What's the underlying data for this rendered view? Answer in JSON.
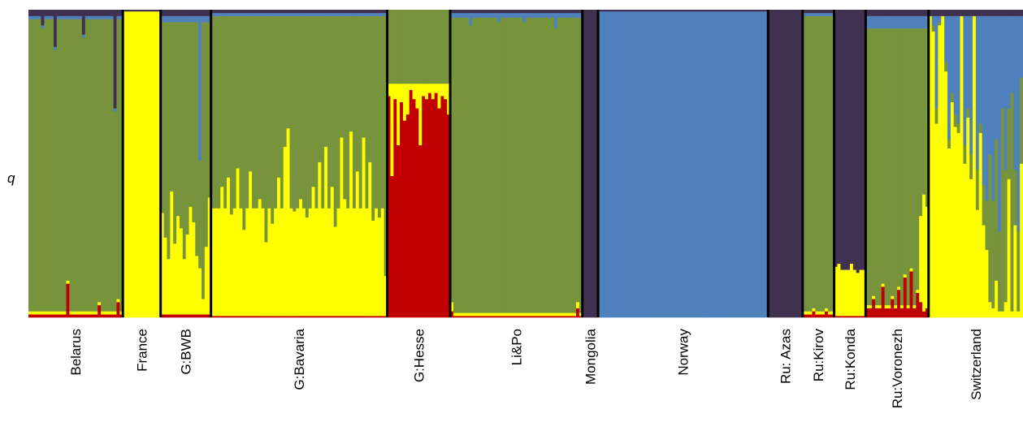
{
  "chart_data": {
    "type": "stacked-bar",
    "ylabel": "q",
    "ylim": [
      0,
      1
    ],
    "colors": {
      "red": "#c00000",
      "yellow": "#ffff00",
      "green": "#77933c",
      "blue": "#4f81bd",
      "purple": "#403151",
      "divider": "#000000"
    },
    "cluster_order": [
      "red",
      "yellow",
      "green",
      "blue",
      "purple"
    ],
    "populations": [
      {
        "name": "Belarus",
        "n": 30,
        "profile": {
          "red": 0.01,
          "yellow": 0.01,
          "green": 0.95,
          "blue": 0.01,
          "purple": 0.02
        },
        "individuals": [
          {
            "i": 4,
            "purple": 0.05
          },
          {
            "i": 8,
            "purple": 0.12
          },
          {
            "i": 12,
            "red": 0.11
          },
          {
            "i": 17,
            "purple": 0.08
          },
          {
            "i": 22,
            "red": 0.04
          },
          {
            "i": 27,
            "purple": 0.32
          },
          {
            "i": 28,
            "red": 0.05
          }
        ]
      },
      {
        "name": "France",
        "n": 12,
        "profile": {
          "red": 0.0,
          "yellow": 0.995,
          "green": 0.0,
          "blue": 0.0,
          "purple": 0.005
        }
      },
      {
        "name": "G:BWB",
        "n": 16,
        "profile": {
          "red": 0.01,
          "yellow": 0.3,
          "green": 0.65,
          "blue": 0.02,
          "purple": 0.02
        },
        "individuals": [
          {
            "i": 0,
            "yellow": 0.33
          },
          {
            "i": 1,
            "yellow": 0.25
          },
          {
            "i": 2,
            "yellow": 0.18
          },
          {
            "i": 3,
            "yellow": 0.4
          },
          {
            "i": 4,
            "yellow": 0.23
          },
          {
            "i": 5,
            "yellow": 0.32
          },
          {
            "i": 6,
            "yellow": 0.28
          },
          {
            "i": 7,
            "yellow": 0.18
          },
          {
            "i": 8,
            "yellow": 0.26
          },
          {
            "i": 9,
            "yellow": 0.35
          },
          {
            "i": 10,
            "yellow": 0.3
          },
          {
            "i": 11,
            "yellow": 0.19
          },
          {
            "i": 12,
            "yellow": 0.15,
            "blue": 0.47
          },
          {
            "i": 13,
            "yellow": 0.05
          },
          {
            "i": 14,
            "yellow": 0.22
          },
          {
            "i": 15,
            "yellow": 0.38
          }
        ]
      },
      {
        "name": "G:Bavaria",
        "n": 56,
        "profile": {
          "red": 0.005,
          "yellow": 0.35,
          "green": 0.625,
          "blue": 0.01,
          "purple": 0.01
        },
        "individuals": [
          {
            "i": 0,
            "yellow": 0.35
          },
          {
            "i": 3,
            "yellow": 0.42
          },
          {
            "i": 5,
            "yellow": 0.45
          },
          {
            "i": 6,
            "yellow": 0.33
          },
          {
            "i": 8,
            "yellow": 0.48
          },
          {
            "i": 10,
            "yellow": 0.28
          },
          {
            "i": 12,
            "yellow": 0.47
          },
          {
            "i": 15,
            "yellow": 0.38
          },
          {
            "i": 17,
            "yellow": 0.24
          },
          {
            "i": 19,
            "yellow": 0.3
          },
          {
            "i": 21,
            "yellow": 0.45
          },
          {
            "i": 23,
            "yellow": 0.55
          },
          {
            "i": 24,
            "yellow": 0.61
          },
          {
            "i": 26,
            "yellow": 0.34
          },
          {
            "i": 28,
            "yellow": 0.38
          },
          {
            "i": 30,
            "yellow": 0.32
          },
          {
            "i": 32,
            "yellow": 0.42
          },
          {
            "i": 34,
            "yellow": 0.5
          },
          {
            "i": 36,
            "yellow": 0.55
          },
          {
            "i": 38,
            "yellow": 0.42
          },
          {
            "i": 39,
            "yellow": 0.29
          },
          {
            "i": 41,
            "yellow": 0.58
          },
          {
            "i": 42,
            "yellow": 0.38
          },
          {
            "i": 44,
            "yellow": 0.6
          },
          {
            "i": 46,
            "yellow": 0.47
          },
          {
            "i": 48,
            "yellow": 0.58
          },
          {
            "i": 50,
            "yellow": 0.5
          },
          {
            "i": 51,
            "yellow": 0.31
          },
          {
            "i": 53,
            "yellow": 0.32
          },
          {
            "i": 55,
            "yellow": 0.13
          }
        ]
      },
      {
        "name": "G:Hesse",
        "n": 20,
        "profile": {
          "red": 0.7,
          "yellow": 0.06,
          "green": 0.24,
          "blue": 0.0,
          "purple": 0.0
        },
        "individuals": [
          {
            "i": 0,
            "red": 0.95,
            "yellow": 0.04
          },
          {
            "i": 1,
            "red": 0.48,
            "yellow": 0.3
          },
          {
            "i": 2,
            "red": 0.88,
            "yellow": 0.05
          },
          {
            "i": 3,
            "red": 0.62,
            "yellow": 0.2
          },
          {
            "i": 4,
            "red": 0.92,
            "yellow": 0.06
          },
          {
            "i": 5,
            "red": 0.4,
            "yellow": 0.12
          },
          {
            "i": 6,
            "red": 0.75,
            "yellow": 0.1
          },
          {
            "i": 7,
            "red": 0.98,
            "yellow": 0.02
          },
          {
            "i": 8,
            "red": 0.55,
            "yellow": 0.05
          },
          {
            "i": 9,
            "red": 0.83,
            "yellow": 0.08
          },
          {
            "i": 10,
            "red": 0.35,
            "yellow": 0.2
          },
          {
            "i": 11,
            "red": 0.9,
            "yellow": 0.04
          },
          {
            "i": 12,
            "red": 0.3,
            "yellow": 0.05
          },
          {
            "i": 13,
            "red": 0.92,
            "yellow": 0.03
          },
          {
            "i": 14,
            "red": 0.6,
            "yellow": 0.05
          },
          {
            "i": 15,
            "red": 0.97,
            "yellow": 0.03
          },
          {
            "i": 16,
            "red": 0.45,
            "yellow": 0.08
          },
          {
            "i": 17,
            "red": 0.85,
            "yellow": 0.04
          },
          {
            "i": 18,
            "red": 0.95,
            "yellow": 0.05
          },
          {
            "i": 19,
            "red": 0.7,
            "yellow": 0.1
          }
        ]
      },
      {
        "name": "Li&Po",
        "n": 42,
        "profile": {
          "red": 0.005,
          "yellow": 0.01,
          "green": 0.96,
          "blue": 0.015,
          "purple": 0.01
        },
        "individuals": [
          {
            "i": 0,
            "red": 0.02,
            "yellow": 0.03
          },
          {
            "i": 6,
            "blue": 0.04
          },
          {
            "i": 15,
            "blue": 0.03
          },
          {
            "i": 23,
            "blue": 0.03
          },
          {
            "i": 33,
            "blue": 0.05
          },
          {
            "i": 40,
            "red": 0.03,
            "yellow": 0.02
          }
        ]
      },
      {
        "name": "Mongolia",
        "n": 5,
        "profile": {
          "red": 0.0,
          "yellow": 0.0,
          "green": 0.0,
          "blue": 0.0,
          "purple": 1.0
        }
      },
      {
        "name": "Norway",
        "n": 54,
        "profile": {
          "red": 0.0,
          "yellow": 0.0,
          "green": 0.0,
          "blue": 0.995,
          "purple": 0.005
        }
      },
      {
        "name": "Ru: Azas",
        "n": 11,
        "profile": {
          "red": 0.0,
          "yellow": 0.0,
          "green": 0.0,
          "blue": 0.0,
          "purple": 1.0
        }
      },
      {
        "name": "Ru:Kirov",
        "n": 10,
        "profile": {
          "red": 0.01,
          "yellow": 0.01,
          "green": 0.96,
          "blue": 0.01,
          "purple": 0.01
        },
        "individuals": [
          {
            "i": 3,
            "red": 0.02
          },
          {
            "i": 7,
            "red": 0.02
          }
        ]
      },
      {
        "name": "Ru:Konda",
        "n": 10,
        "profile": {
          "red": 0.005,
          "yellow": 0.15,
          "green": 0.0,
          "blue": 0.0,
          "purple": 0.845
        },
        "individuals": [
          {
            "i": 0,
            "yellow": 0.16
          },
          {
            "i": 1,
            "yellow": 0.17
          },
          {
            "i": 3,
            "yellow": 0.15
          },
          {
            "i": 5,
            "yellow": 0.17
          },
          {
            "i": 7,
            "yellow": 0.14
          },
          {
            "i": 9,
            "yellow": 0.15
          }
        ]
      },
      {
        "name": "Ru:Voronezh",
        "n": 20,
        "profile": {
          "red": 0.03,
          "yellow": 0.01,
          "green": 0.9,
          "blue": 0.04,
          "purple": 0.02
        },
        "individuals": [
          {
            "i": 2,
            "red": 0.06
          },
          {
            "i": 5,
            "red": 0.1
          },
          {
            "i": 8,
            "red": 0.06
          },
          {
            "i": 10,
            "red": 0.09
          },
          {
            "i": 12,
            "red": 0.13
          },
          {
            "i": 14,
            "red": 0.15
          },
          {
            "i": 16,
            "red": 0.08
          },
          {
            "i": 17,
            "yellow": 0.28,
            "red": 0.05
          },
          {
            "i": 18,
            "yellow": 0.38,
            "red": 0.02
          },
          {
            "i": 19,
            "yellow": 0.33
          }
        ]
      },
      {
        "name": "Switzerland",
        "n": 30,
        "profile": {
          "red": 0.0,
          "yellow": 0.55,
          "green": 0.15,
          "blue": 0.28,
          "purple": 0.02
        },
        "individuals": [
          {
            "i": 0,
            "yellow": 0.98,
            "blue": 0.0,
            "green": 0.0
          },
          {
            "i": 1,
            "yellow": 0.92,
            "blue": 0.03,
            "green": 0.02
          },
          {
            "i": 2,
            "yellow": 0.6,
            "blue": 0.3,
            "green": 0.05
          },
          {
            "i": 3,
            "yellow": 0.95,
            "blue": 0.02
          },
          {
            "i": 4,
            "yellow": 0.98,
            "blue": 0.0,
            "green": 0.0
          },
          {
            "i": 5,
            "yellow": 0.8,
            "blue": 0.15
          },
          {
            "i": 6,
            "yellow": 0.55,
            "blue": 0.4
          },
          {
            "i": 7,
            "yellow": 0.7,
            "blue": 0.25
          },
          {
            "i": 8,
            "yellow": 0.62,
            "blue": 0.32
          },
          {
            "i": 9,
            "yellow": 0.6,
            "blue": 0.35
          },
          {
            "i": 10,
            "yellow": 0.97,
            "blue": 0.0,
            "green": 0.0
          },
          {
            "i": 11,
            "yellow": 0.5,
            "blue": 0.42
          },
          {
            "i": 12,
            "yellow": 0.65,
            "blue": 0.3
          },
          {
            "i": 13,
            "yellow": 0.45,
            "blue": 0.45
          },
          {
            "i": 14,
            "yellow": 0.97,
            "blue": 0.0,
            "green": 0.0
          },
          {
            "i": 15,
            "yellow": 0.35,
            "blue": 0.5
          },
          {
            "i": 16,
            "yellow": 0.6,
            "blue": 0.35
          },
          {
            "i": 17,
            "yellow": 0.3,
            "blue": 0.55
          },
          {
            "i": 18,
            "yellow": 0.22,
            "blue": 0.6
          },
          {
            "i": 19,
            "yellow": 0.05,
            "blue": 0.45
          },
          {
            "i": 20,
            "yellow": 0.03,
            "blue": 0.6
          },
          {
            "i": 21,
            "yellow": 0.12,
            "blue": 0.4
          },
          {
            "i": 22,
            "yellow": 0.02,
            "blue": 0.7
          },
          {
            "i": 23,
            "yellow": 0.02,
            "blue": 0.3
          },
          {
            "i": 24,
            "yellow": 0.05,
            "blue": 0.5
          },
          {
            "i": 25,
            "yellow": 0.45,
            "blue": 0.3
          },
          {
            "i": 26,
            "yellow": 0.02,
            "blue": 0.25
          },
          {
            "i": 27,
            "yellow": 0.3,
            "blue": 0.5
          },
          {
            "i": 28,
            "yellow": 0.02,
            "blue": 0.7
          },
          {
            "i": 29,
            "yellow": 0.5,
            "blue": 0.2
          }
        ]
      }
    ]
  }
}
